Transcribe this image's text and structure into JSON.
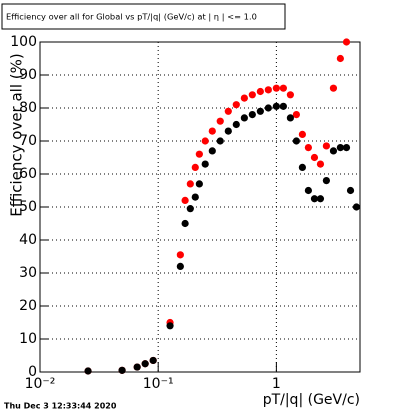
{
  "chart_data": {
    "type": "scatter",
    "title": "Efficiency over all for Global vs pT/|q| (GeV/c) at | η | <= 1.0",
    "x_label": "pT/|q| (GeV/c)",
    "y_label": "Efficiency over all (%)",
    "footer": "Thu Dec  3 12:33:44 2020",
    "log_x": true,
    "grid": true,
    "x": [
      0.0255,
      0.0495,
      0.0664,
      0.0776,
      0.0907,
      0.126,
      0.154,
      0.169,
      0.187,
      0.206,
      0.223,
      0.25,
      0.287,
      0.335,
      0.392,
      0.458,
      0.536,
      0.626,
      0.732,
      0.855,
      1.0,
      1.146,
      1.314,
      1.477,
      1.66,
      1.866,
      2.1,
      2.36,
      2.65,
      3.04,
      3.48,
      3.92,
      4.24,
      4.76
    ],
    "series": [
      {
        "name": "red",
        "color": "#ff0000",
        "values": [
          0.3,
          0.5,
          1.5,
          2.5,
          3.5,
          15,
          35.5,
          52,
          57,
          62,
          66,
          70,
          73,
          76,
          79,
          81,
          83,
          84,
          85,
          85.5,
          86,
          86,
          84,
          78,
          72,
          68,
          65,
          63,
          68.5,
          86,
          95,
          100,
          null,
          null
        ]
      },
      {
        "name": "black",
        "color": "#000000",
        "values": [
          0.3,
          0.5,
          1.5,
          2.5,
          3.5,
          14,
          32,
          45,
          49.5,
          53,
          57,
          63,
          67,
          70,
          73,
          75,
          77,
          78,
          79,
          80,
          80.5,
          80.5,
          77,
          70,
          62,
          55,
          52.5,
          52.5,
          58,
          67,
          68,
          68,
          55,
          50
        ]
      }
    ],
    "xlim": [
      0.01,
      5.1
    ],
    "xticks": [
      {
        "value": 0.01,
        "label": "10⁻²"
      },
      {
        "value": 0.1,
        "label": "10⁻¹"
      },
      1
    ],
    "ylim": [
      0,
      100
    ],
    "yticks": [
      0,
      10,
      20,
      30,
      40,
      50,
      60,
      70,
      80,
      90,
      100
    ]
  }
}
